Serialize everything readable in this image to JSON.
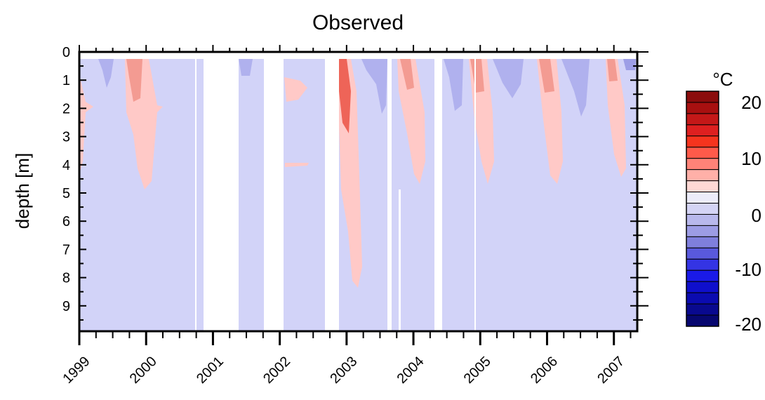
{
  "chart_data": {
    "type": "heatmap",
    "title": "Observed",
    "xlabel": "",
    "ylabel": "depth [m]",
    "x_ticks": [
      "1999",
      "2000",
      "2001",
      "2002",
      "2003",
      "2004",
      "2005",
      "2006",
      "2007"
    ],
    "y_ticks": [
      "0",
      "1",
      "2",
      "3",
      "4",
      "5",
      "6",
      "7",
      "8",
      "9"
    ],
    "xlim": [
      "1999-01",
      "2007-05"
    ],
    "ylim": [
      0,
      9.6
    ],
    "y_inverted": true,
    "colorbar": {
      "unit": "°C",
      "labels": [
        "20",
        "10",
        "0",
        "-10",
        "-20"
      ],
      "levels": [
        20,
        10,
        0,
        -10,
        -20
      ],
      "colors": [
        "#8b0c0c",
        "#a81010",
        "#c41818",
        "#de2020",
        "#f5341e",
        "#ff5a4a",
        "#ff8378",
        "#ffb0a8",
        "#ffd8d4",
        "#ececfa",
        "#d4d4f5",
        "#b8b8ec",
        "#9c9ce4",
        "#7f7fdc",
        "#5959dc",
        "#3434e4",
        "#1a1ae8",
        "#0f0fcc",
        "#0b0bb0",
        "#09098f",
        "#070770"
      ]
    },
    "background_value_color": "#d2d3f8",
    "missing_periods": [
      [
        "2000-09",
        "2000-11"
      ],
      [
        "2001-05",
        "2001-10"
      ],
      [
        "2002-01",
        "2002-08"
      ],
      [
        "2002-09",
        "2002-11"
      ],
      [
        "2003-08",
        "2003-09"
      ],
      [
        "2004-04",
        "2004-05"
      ]
    ]
  }
}
